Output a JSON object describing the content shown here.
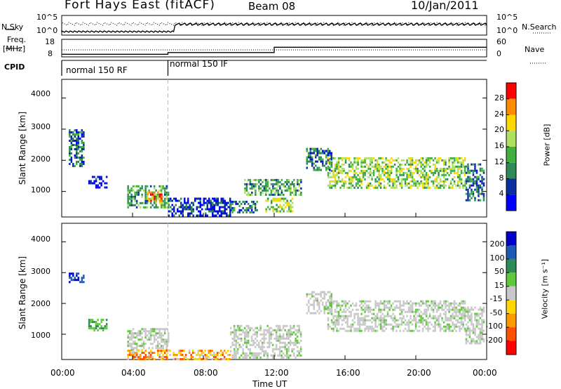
{
  "header": {
    "station": "Fort Hays East (fitACF)",
    "beam": "Beam 08",
    "date": "10/Jan/2011"
  },
  "top_panels": {
    "nsky_label": "N.Sky",
    "nsearch_label": "N.Search",
    "count_ticks_left": [
      "10^5",
      "10^0"
    ],
    "count_ticks_right": [
      "10^5",
      "10^0"
    ],
    "freq_label_1": "Freq.",
    "freq_label_2": "[MHz]",
    "freq_ticks": [
      "18",
      "8"
    ],
    "nave_label": "Nave",
    "nave_ticks": [
      "60",
      "0"
    ],
    "cpid_label": "CPID",
    "cpid_segments": [
      {
        "label": "normal 150 RF",
        "start_hour": 0,
        "end_hour": 6
      },
      {
        "label": "normal 150 IF",
        "start_hour": 6,
        "end_hour": 24
      }
    ],
    "freq_steps": [
      {
        "start_hour": 0,
        "end_hour": 6,
        "mhz": 9.5
      },
      {
        "start_hour": 6,
        "end_hour": 12,
        "mhz": 10.5
      },
      {
        "start_hour": 12,
        "end_hour": 24,
        "mhz": 13.5
      }
    ],
    "nave_level": 24
  },
  "chart_data": [
    {
      "type": "heatmap",
      "name": "power",
      "ylabel": "Slant Range [km]",
      "ylim": [
        180,
        4600
      ],
      "y_ticks": [
        "4000",
        "3000",
        "2000",
        "1000"
      ],
      "xlim": [
        0,
        24
      ],
      "colorbar_label": "Power [dB]",
      "colorbar_ticks": [
        "28",
        "24",
        "20",
        "16",
        "12",
        "8",
        "4"
      ],
      "colorbar_colors": [
        "#ff0000",
        "#ff8c00",
        "#ffd700",
        "#b0e060",
        "#40b040",
        "#2e8b57",
        "#0a2fa0",
        "#0000ff"
      ],
      "regions": [
        {
          "hours": [
            0.4,
            1.2
          ],
          "range_km": [
            1800,
            3000
          ],
          "level": 2
        },
        {
          "hours": [
            1.5,
            2.5
          ],
          "range_km": [
            1100,
            1500
          ],
          "level": 1
        },
        {
          "hours": [
            3.7,
            6.0
          ],
          "range_km": [
            500,
            1200
          ],
          "level": 3
        },
        {
          "hours": [
            4.8,
            5.6
          ],
          "range_km": [
            600,
            1000
          ],
          "level": 6
        },
        {
          "hours": [
            6.0,
            9.5
          ],
          "range_km": [
            250,
            800
          ],
          "level": 1
        },
        {
          "hours": [
            9.5,
            11.0
          ],
          "range_km": [
            300,
            700
          ],
          "level": 2
        },
        {
          "hours": [
            10.3,
            13.5
          ],
          "range_km": [
            900,
            1400
          ],
          "level": 3
        },
        {
          "hours": [
            11.5,
            13.0
          ],
          "range_km": [
            350,
            800
          ],
          "level": 4
        },
        {
          "hours": [
            13.8,
            15.2
          ],
          "range_km": [
            1700,
            2400
          ],
          "level": 2
        },
        {
          "hours": [
            15.0,
            22.8
          ],
          "range_km": [
            1100,
            2100
          ],
          "level": 4
        },
        {
          "hours": [
            22.8,
            23.8
          ],
          "range_km": [
            700,
            1900
          ],
          "level": 2
        }
      ]
    },
    {
      "type": "heatmap",
      "name": "velocity",
      "ylabel": "Slant Range [km]",
      "xlabel": "Time UT",
      "ylim": [
        180,
        4600
      ],
      "y_ticks": [
        "4000",
        "3000",
        "2000",
        "1000"
      ],
      "xlim": [
        0,
        24
      ],
      "x_ticks": [
        "00:00",
        "04:00",
        "08:00",
        "12:00",
        "16:00",
        "20:00",
        "00:00"
      ],
      "colorbar_label": "Velocity [m s⁻¹]",
      "colorbar_ticks": [
        "200",
        "100",
        "50",
        "15",
        "-15",
        "-50",
        "-100",
        "-200"
      ],
      "colorbar_colors": [
        "#0000c8",
        "#1e5ab4",
        "#2e8b57",
        "#5fc83c",
        "#c8c8c8",
        "#ffd700",
        "#ff9900",
        "#ff5000",
        "#ff0000"
      ],
      "regions": [
        {
          "hours": [
            0.4,
            1.2
          ],
          "range_km": [
            2700,
            3000
          ],
          "level": "pos"
        },
        {
          "hours": [
            1.5,
            2.5
          ],
          "range_km": [
            1100,
            1500
          ],
          "level": "green"
        },
        {
          "hours": [
            3.7,
            6.0
          ],
          "range_km": [
            500,
            1200
          ],
          "level": "gray"
        },
        {
          "hours": [
            3.7,
            9.5
          ],
          "range_km": [
            200,
            500
          ],
          "level": "neg"
        },
        {
          "hours": [
            9.5,
            13.5
          ],
          "range_km": [
            250,
            1300
          ],
          "level": "gray"
        },
        {
          "hours": [
            13.8,
            15.2
          ],
          "range_km": [
            1700,
            2400
          ],
          "level": "gray"
        },
        {
          "hours": [
            15.0,
            22.8
          ],
          "range_km": [
            1100,
            2100
          ],
          "level": "gray"
        },
        {
          "hours": [
            22.8,
            23.8
          ],
          "range_km": [
            700,
            1900
          ],
          "level": "gray"
        }
      ]
    }
  ]
}
